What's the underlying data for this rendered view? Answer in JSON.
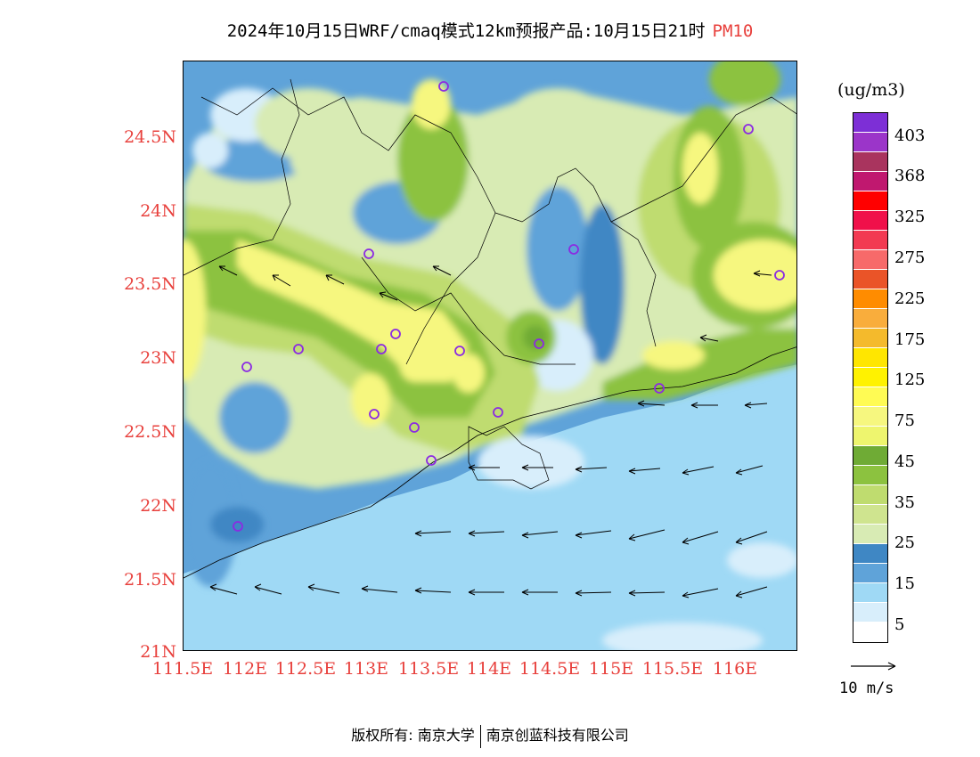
{
  "title": {
    "main": "2024年10月15日WRF/cmaq模式12km预报产品:10月15日21时",
    "variable": "PM10"
  },
  "map": {
    "lat_labels": [
      "24.5N",
      "24N",
      "23.5N",
      "23N",
      "22.5N",
      "22N",
      "21.5N",
      "21N"
    ],
    "lon_labels": [
      "111.5E",
      "112E",
      "112.5E",
      "113E",
      "113.5E",
      "114E",
      "114.5E",
      "115E",
      "115.5E",
      "116E"
    ],
    "background_color": "#9fd9f5"
  },
  "colorbar": {
    "unit": "(ug/m3)",
    "labels": [
      "403",
      "368",
      "325",
      "275",
      "225",
      "175",
      "125",
      "75",
      "45",
      "35",
      "25",
      "15",
      "5"
    ],
    "colors": [
      "#7d2fd6",
      "#9b35c9",
      "#a9345e",
      "#c0186f",
      "#ff0000",
      "#f0104a",
      "#f23a52",
      "#f76a6a",
      "#ea5428",
      "#ff8c00",
      "#f9ad3c",
      "#f4ba2c",
      "#ffe600",
      "#fff200",
      "#fffb54",
      "#f6f77f",
      "#eef56e",
      "#6fab35",
      "#8cc23f",
      "#bfdc6f",
      "#cfe48f",
      "#d8ebb4",
      "#3f87c4",
      "#5fa3d9",
      "#9fd9f5",
      "#d8eefb",
      "#ffffff"
    ]
  },
  "wind_reference": {
    "label": "10 m/s"
  },
  "footer": {
    "copyright_left": "版权所有: 南京大学",
    "copyright_right": "南京创蓝科技有限公司"
  }
}
